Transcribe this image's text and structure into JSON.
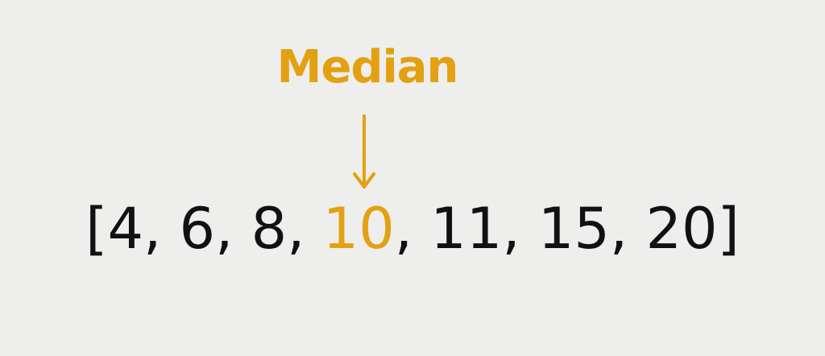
{
  "colors": {
    "background": "#eeeeec",
    "accent": "#e3a010",
    "text": "#111111"
  },
  "label": "Median",
  "arrow_icon": "down-arrow-icon",
  "sequence": {
    "open": "[",
    "items": [
      "4",
      "6",
      "8",
      "10",
      "11",
      "15",
      "20"
    ],
    "separator": ", ",
    "close": "]",
    "highlight_index": 3
  }
}
